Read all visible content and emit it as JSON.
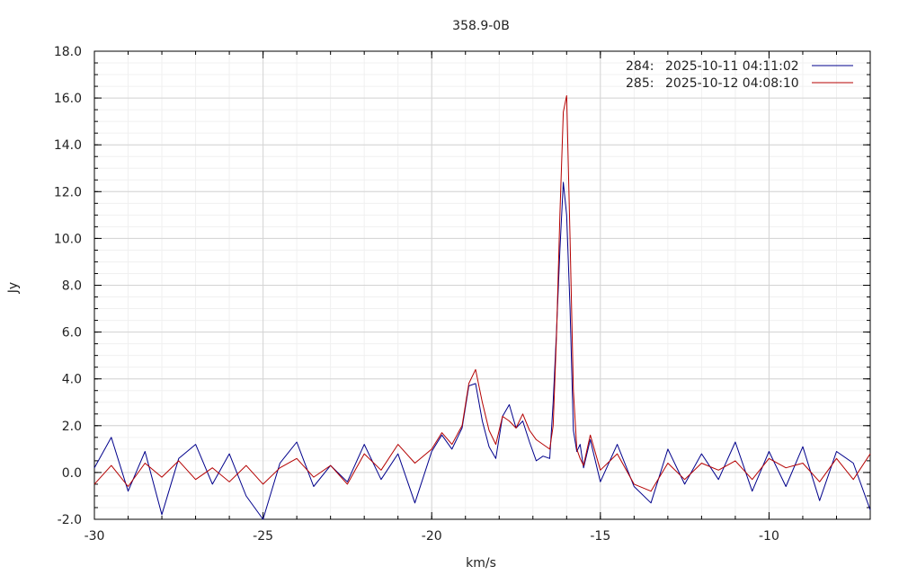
{
  "chart_data": {
    "type": "line",
    "title": "358.9-0B",
    "xlabel": "km/s",
    "ylabel": "Jy",
    "xlim": [
      -30,
      -7
    ],
    "ylim": [
      -2,
      18
    ],
    "x_ticks": [
      -30,
      -25,
      -20,
      -15,
      -10
    ],
    "x_tick_labels": [
      "-30",
      "-25",
      "-20",
      "-15",
      "-10"
    ],
    "y_ticks": [
      -2,
      0,
      2,
      4,
      6,
      8,
      10,
      12,
      14,
      16,
      18
    ],
    "y_tick_labels": [
      "-2.0",
      "0.0",
      "2.0",
      "4.0",
      "6.0",
      "8.0",
      "10.0",
      "12.0",
      "14.0",
      "16.0",
      "18.0"
    ],
    "grid": true,
    "legend_position": "top-right",
    "series": [
      {
        "name": "2025-10-11 04:11:02",
        "id": "284:",
        "color": "#00008b",
        "x": [
          -30.0,
          -29.5,
          -29.0,
          -28.5,
          -28.0,
          -27.5,
          -27.0,
          -26.5,
          -26.0,
          -25.5,
          -25.0,
          -24.5,
          -24.0,
          -23.5,
          -23.0,
          -22.5,
          -22.0,
          -21.5,
          -21.0,
          -20.5,
          -20.0,
          -19.7,
          -19.4,
          -19.1,
          -18.9,
          -18.7,
          -18.5,
          -18.3,
          -18.1,
          -17.9,
          -17.7,
          -17.5,
          -17.3,
          -17.1,
          -16.9,
          -16.7,
          -16.5,
          -16.4,
          -16.3,
          -16.2,
          -16.1,
          -16.0,
          -15.9,
          -15.8,
          -15.7,
          -15.6,
          -15.5,
          -15.3,
          -15.0,
          -14.5,
          -14.0,
          -13.5,
          -13.0,
          -12.5,
          -12.0,
          -11.5,
          -11.0,
          -10.5,
          -10.0,
          -9.5,
          -9.0,
          -8.5,
          -8.0,
          -7.5,
          -7.0
        ],
        "values": [
          0.2,
          1.5,
          -0.8,
          0.9,
          -1.8,
          0.6,
          1.2,
          -0.5,
          0.8,
          -1.0,
          -2.0,
          0.4,
          1.3,
          -0.6,
          0.3,
          -0.4,
          1.2,
          -0.3,
          0.8,
          -1.3,
          0.9,
          1.6,
          1.0,
          1.9,
          3.7,
          3.8,
          2.2,
          1.1,
          0.6,
          2.4,
          2.9,
          1.9,
          2.2,
          1.3,
          0.5,
          0.7,
          0.6,
          3.0,
          6.0,
          9.5,
          12.4,
          11.0,
          7.0,
          1.8,
          0.9,
          1.2,
          0.2,
          1.4,
          -0.4,
          1.2,
          -0.6,
          -1.3,
          1.0,
          -0.5,
          0.8,
          -0.3,
          1.3,
          -0.8,
          0.9,
          -0.6,
          1.1,
          -1.2,
          0.9,
          0.4,
          -1.6
        ]
      },
      {
        "name": "2025-10-12 04:08:10",
        "id": "285:",
        "color": "#b40000",
        "x": [
          -30.0,
          -29.5,
          -29.0,
          -28.5,
          -28.0,
          -27.5,
          -27.0,
          -26.5,
          -26.0,
          -25.5,
          -25.0,
          -24.5,
          -24.0,
          -23.5,
          -23.0,
          -22.5,
          -22.0,
          -21.5,
          -21.0,
          -20.5,
          -20.0,
          -19.7,
          -19.4,
          -19.1,
          -18.9,
          -18.7,
          -18.5,
          -18.3,
          -18.1,
          -17.9,
          -17.7,
          -17.5,
          -17.3,
          -17.1,
          -16.9,
          -16.7,
          -16.5,
          -16.4,
          -16.3,
          -16.2,
          -16.1,
          -16.0,
          -15.9,
          -15.8,
          -15.7,
          -15.6,
          -15.5,
          -15.3,
          -15.0,
          -14.5,
          -14.0,
          -13.5,
          -13.0,
          -12.5,
          -12.0,
          -11.5,
          -11.0,
          -10.5,
          -10.0,
          -9.5,
          -9.0,
          -8.5,
          -8.0,
          -7.5,
          -7.0
        ],
        "values": [
          -0.5,
          0.3,
          -0.6,
          0.4,
          -0.2,
          0.5,
          -0.3,
          0.2,
          -0.4,
          0.3,
          -0.5,
          0.2,
          0.6,
          -0.2,
          0.3,
          -0.5,
          0.8,
          0.1,
          1.2,
          0.4,
          1.0,
          1.7,
          1.2,
          2.0,
          3.8,
          4.4,
          3.0,
          1.8,
          1.2,
          2.4,
          2.2,
          1.9,
          2.5,
          1.8,
          1.4,
          1.2,
          1.0,
          2.0,
          5.8,
          11.0,
          15.4,
          16.1,
          10.0,
          3.5,
          1.0,
          0.6,
          0.3,
          1.6,
          0.1,
          0.8,
          -0.5,
          -0.8,
          0.4,
          -0.3,
          0.4,
          0.1,
          0.5,
          -0.3,
          0.6,
          0.2,
          0.4,
          -0.4,
          0.6,
          -0.3,
          0.8
        ]
      }
    ]
  }
}
